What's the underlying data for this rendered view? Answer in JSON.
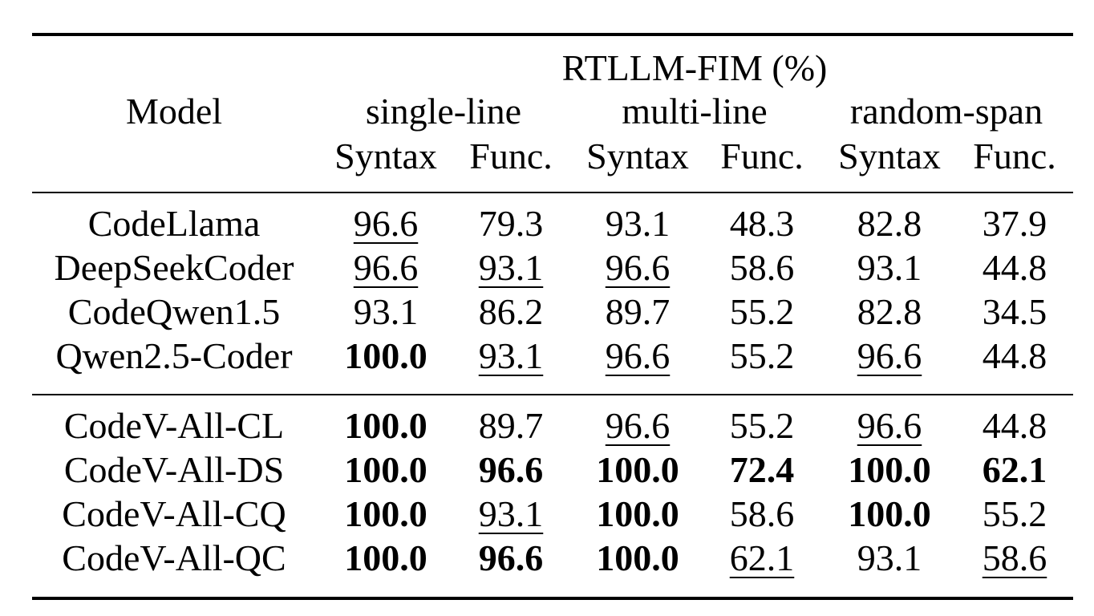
{
  "table": {
    "model_header": "Model",
    "group_header": "RTLLM-FIM (%)",
    "subgroups": [
      "single-line",
      "multi-line",
      "random-span"
    ],
    "metric_headers": [
      "Syntax",
      "Func.",
      "Syntax",
      "Func.",
      "Syntax",
      "Func."
    ],
    "sections": [
      {
        "rows": [
          {
            "model": "CodeLlama",
            "values": [
              "96.6",
              "79.3",
              "93.1",
              "48.3",
              "82.8",
              "37.9"
            ],
            "styles": [
              "u",
              "",
              "",
              "",
              "",
              ""
            ]
          },
          {
            "model": "DeepSeekCoder",
            "values": [
              "96.6",
              "93.1",
              "96.6",
              "58.6",
              "93.1",
              "44.8"
            ],
            "styles": [
              "u",
              "u",
              "u",
              "",
              "",
              ""
            ]
          },
          {
            "model": "CodeQwen1.5",
            "values": [
              "93.1",
              "86.2",
              "89.7",
              "55.2",
              "82.8",
              "34.5"
            ],
            "styles": [
              "",
              "",
              "",
              "",
              "",
              ""
            ]
          },
          {
            "model": "Qwen2.5-Coder",
            "values": [
              "100.0",
              "93.1",
              "96.6",
              "55.2",
              "96.6",
              "44.8"
            ],
            "styles": [
              "b",
              "u",
              "u",
              "",
              "u",
              ""
            ]
          }
        ]
      },
      {
        "rows": [
          {
            "model": "CodeV-All-CL",
            "values": [
              "100.0",
              "89.7",
              "96.6",
              "55.2",
              "96.6",
              "44.8"
            ],
            "styles": [
              "b",
              "",
              "u",
              "",
              "u",
              ""
            ]
          },
          {
            "model": "CodeV-All-DS",
            "values": [
              "100.0",
              "96.6",
              "100.0",
              "72.4",
              "100.0",
              "62.1"
            ],
            "styles": [
              "b",
              "b",
              "b",
              "b",
              "b",
              "b"
            ]
          },
          {
            "model": "CodeV-All-CQ",
            "values": [
              "100.0",
              "93.1",
              "100.0",
              "58.6",
              "100.0",
              "55.2"
            ],
            "styles": [
              "b",
              "u",
              "b",
              "",
              "b",
              ""
            ]
          },
          {
            "model": "CodeV-All-QC",
            "values": [
              "100.0",
              "96.6",
              "100.0",
              "62.1",
              "93.1",
              "58.6"
            ],
            "styles": [
              "b",
              "b",
              "b",
              "u",
              "",
              "u"
            ]
          }
        ]
      }
    ]
  }
}
